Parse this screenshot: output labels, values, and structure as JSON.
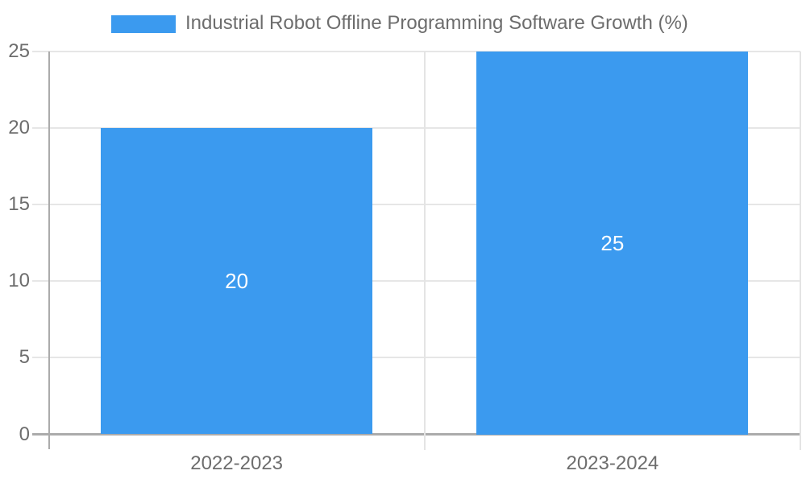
{
  "legend": {
    "label": "Industrial Robot Offline Programming Software Growth (%)"
  },
  "chart_data": {
    "type": "bar",
    "title": "Industrial Robot Offline Programming Software Growth (%)",
    "categories": [
      "2022-2023",
      "2023-2024"
    ],
    "series": [
      {
        "name": "Industrial Robot Offline Programming Software Growth (%)",
        "values": [
          20,
          25
        ]
      }
    ],
    "data_labels": [
      "20",
      "25"
    ],
    "yticks": [
      0,
      5,
      10,
      15,
      20,
      25
    ],
    "ylim": [
      0,
      25
    ],
    "xlabel": "",
    "ylabel": "",
    "grid": true,
    "legend_position": "top"
  },
  "colors": {
    "bar": "#3b9aef",
    "text": "#6d6d6d",
    "grid": "#e6e6e6",
    "boundary": "#e4e4e4",
    "axis": "#ababab",
    "value_label": "#ffffff",
    "background": "#ffffff"
  }
}
